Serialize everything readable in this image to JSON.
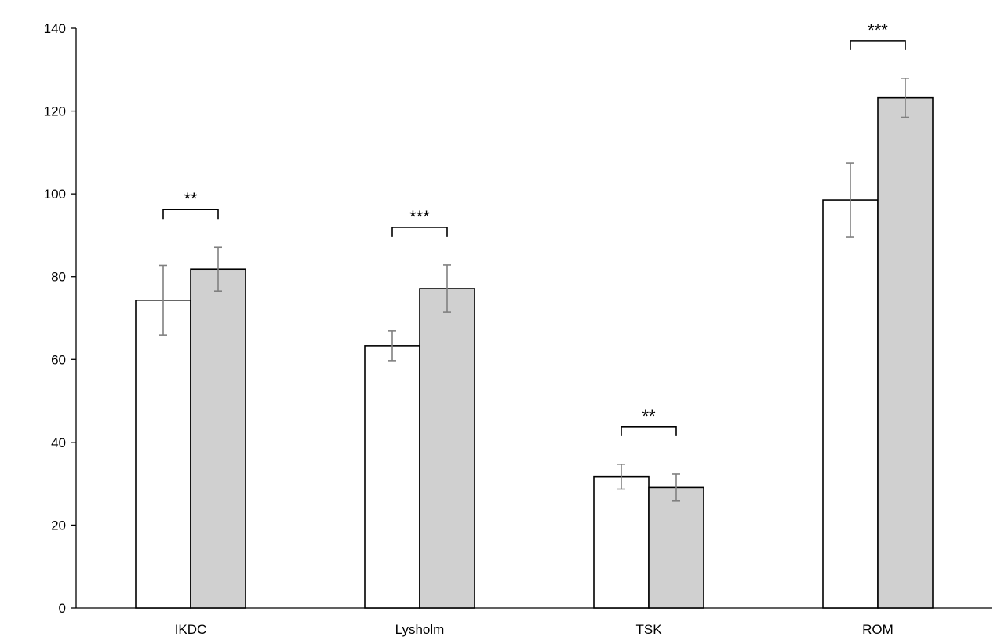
{
  "chart_data": {
    "type": "bar",
    "title": "",
    "xlabel": "",
    "ylabel": "",
    "ylim": [
      0,
      140
    ],
    "yticks": [
      0,
      20,
      40,
      60,
      80,
      100,
      120,
      140
    ],
    "grid": false,
    "legend": "none",
    "categories": [
      "IKDC",
      "Lysholm",
      "TSK",
      "ROM"
    ],
    "series": [
      {
        "color": "#ffffff",
        "values": [
          74.3,
          63.3,
          31.7,
          98.5
        ],
        "errors": [
          8.4,
          3.6,
          3.0,
          8.9
        ]
      },
      {
        "color": "#d0d0d0",
        "values": [
          81.8,
          77.1,
          29.1,
          123.2
        ],
        "errors": [
          5.3,
          5.7,
          3.3,
          4.7
        ]
      }
    ],
    "significance": [
      "**",
      "***",
      "**",
      "***"
    ],
    "error_bar_color": "#808080"
  }
}
